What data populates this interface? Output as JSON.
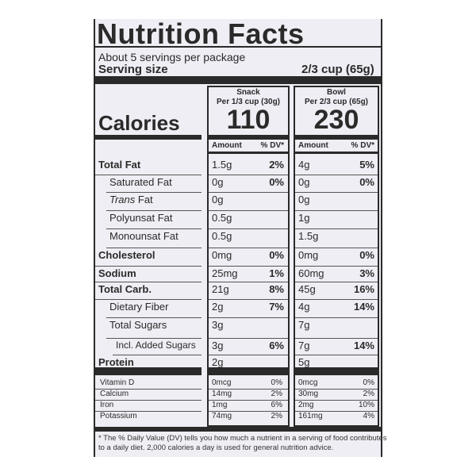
{
  "title": "Nutrition Facts",
  "servings_per_package": "About 5 servings per package",
  "serving_size_label": "Serving size",
  "serving_size_value": "2/3 cup (65g)",
  "columns": [
    {
      "name": "Snack",
      "portion": "Per 1/3 cup (30g)",
      "calories": "110"
    },
    {
      "name": "Bowl",
      "portion": "Per 2/3 cup (65g)",
      "calories": "230"
    }
  ],
  "calories_label": "Calories",
  "amount_header": "Amount",
  "dv_header": "% DV*",
  "nutrients": [
    {
      "name": "Total Fat",
      "bold": true,
      "indent": 0,
      "snack_amt": "1.5g",
      "snack_dv": "2%",
      "bowl_amt": "4g",
      "bowl_dv": "5%"
    },
    {
      "name": "Saturated Fat",
      "bold": false,
      "indent": 1,
      "snack_amt": "0g",
      "snack_dv": "0%",
      "bowl_amt": "0g",
      "bowl_dv": "0%"
    },
    {
      "name": "Trans Fat",
      "bold": false,
      "indent": 1,
      "italic_prefix": "Trans",
      "snack_amt": "0g",
      "snack_dv": "",
      "bowl_amt": "0g",
      "bowl_dv": ""
    },
    {
      "name": "Polyunsat Fat",
      "bold": false,
      "indent": 1,
      "snack_amt": "0.5g",
      "snack_dv": "",
      "bowl_amt": "1g",
      "bowl_dv": ""
    },
    {
      "name": "Monounsat Fat",
      "bold": false,
      "indent": 1,
      "snack_amt": "0.5g",
      "snack_dv": "",
      "bowl_amt": "1.5g",
      "bowl_dv": ""
    },
    {
      "name": "Cholesterol",
      "bold": true,
      "indent": 0,
      "snack_amt": "0mg",
      "snack_dv": "0%",
      "bowl_amt": "0mg",
      "bowl_dv": "0%"
    },
    {
      "name": "Sodium",
      "bold": true,
      "indent": 0,
      "snack_amt": "25mg",
      "snack_dv": "1%",
      "bowl_amt": "60mg",
      "bowl_dv": "3%"
    },
    {
      "name": "Total Carb.",
      "bold": true,
      "indent": 0,
      "snack_amt": "21g",
      "snack_dv": "8%",
      "bowl_amt": "45g",
      "bowl_dv": "16%"
    },
    {
      "name": "Dietary Fiber",
      "bold": false,
      "indent": 1,
      "snack_amt": "2g",
      "snack_dv": "7%",
      "bowl_amt": "4g",
      "bowl_dv": "14%"
    },
    {
      "name": "Total Sugars",
      "bold": false,
      "indent": 1,
      "snack_amt": "3g",
      "snack_dv": "",
      "bowl_amt": "7g",
      "bowl_dv": ""
    },
    {
      "name": "Incl. Added Sugars",
      "bold": false,
      "indent": 2,
      "snack_amt": "3g",
      "snack_dv": "6%",
      "bowl_amt": "7g",
      "bowl_dv": "14%"
    },
    {
      "name": "Protein",
      "bold": true,
      "indent": 0,
      "snack_amt": "2g",
      "snack_dv": "",
      "bowl_amt": "5g",
      "bowl_dv": ""
    }
  ],
  "vitamins": [
    {
      "name": "Vitamin D",
      "snack_amt": "0mcg",
      "snack_dv": "0%",
      "bowl_amt": "0mcg",
      "bowl_dv": "0%"
    },
    {
      "name": "Calcium",
      "snack_amt": "14mg",
      "snack_dv": "2%",
      "bowl_amt": "30mg",
      "bowl_dv": "2%"
    },
    {
      "name": "Iron",
      "snack_amt": "1mg",
      "snack_dv": "6%",
      "bowl_amt": "2mg",
      "bowl_dv": "10%"
    },
    {
      "name": "Potassium",
      "snack_amt": "74mg",
      "snack_dv": "2%",
      "bowl_amt": "161mg",
      "bowl_dv": "4%"
    }
  ],
  "footnote_line1": "* The % Daily Value (DV) tells you how much a nutrient in a serving of food contributes",
  "footnote_line2": "to a daily diet. 2,000 calories a day is used for general nutrition advice."
}
